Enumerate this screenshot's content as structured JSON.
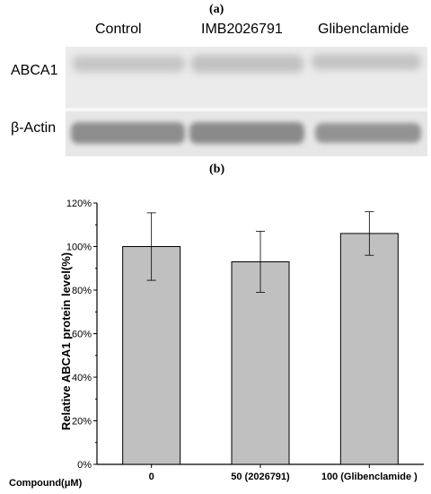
{
  "panel_a": {
    "label": "(a)",
    "lanes": [
      "Control",
      "IMB2026791",
      "Glibenclamide"
    ],
    "rows": [
      "ABCA1",
      "β-Actin"
    ],
    "band_colors": {
      "abca1": "#c4c4c4",
      "actin": "#8f8f8f",
      "background": "#ececec"
    }
  },
  "panel_b": {
    "label": "(b)"
  },
  "chart_data": {
    "type": "bar",
    "categories": [
      "0",
      "50 (2026791)",
      "100 (Glibenclamide )"
    ],
    "values": [
      100,
      93,
      106
    ],
    "errors": [
      15.5,
      14,
      10
    ],
    "xlabel": "Compound(μM)",
    "ylabel": "Relative ABCA1 protein level(%)",
    "ylim": [
      0,
      120
    ],
    "yticks": [
      0,
      20,
      40,
      60,
      80,
      100,
      120
    ],
    "ytick_suffix": "%",
    "bar_color": "#c0c0c0",
    "grid": false,
    "legend": "none"
  }
}
